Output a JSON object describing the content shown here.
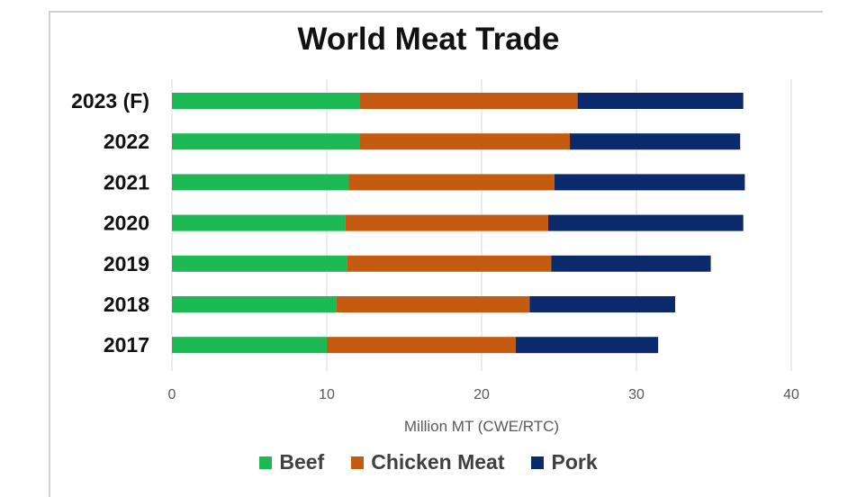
{
  "chart_data": {
    "type": "bar",
    "orientation": "horizontal",
    "stacked": true,
    "title": "World Meat Trade",
    "xlabel": "Million MT (CWE/RTC)",
    "ylabel": "",
    "xlim": [
      0,
      40
    ],
    "xticks": [
      "0",
      "10",
      "20",
      "30",
      "40"
    ],
    "grid": true,
    "legend_position": "bottom",
    "categories": [
      "2023 (F)",
      "2022",
      "2021",
      "2020",
      "2019",
      "2018",
      "2017"
    ],
    "series": [
      {
        "name": "Beef",
        "color": "#1db954",
        "values": [
          12.1,
          12.1,
          11.4,
          11.2,
          11.3,
          10.6,
          10.0
        ]
      },
      {
        "name": "Chicken Meat",
        "color": "#c55a11",
        "values": [
          14.1,
          13.6,
          13.3,
          13.1,
          13.2,
          12.5,
          12.2
        ]
      },
      {
        "name": "Pork",
        "color": "#0b2a6b",
        "values": [
          10.7,
          11.0,
          12.3,
          12.6,
          10.3,
          9.4,
          9.2
        ]
      }
    ]
  }
}
